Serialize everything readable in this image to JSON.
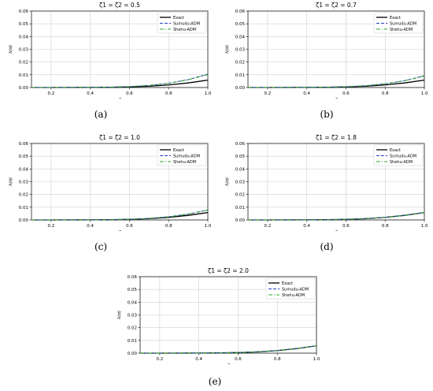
{
  "figure": {
    "panels": [
      {
        "id": "a",
        "caption": "(a)"
      },
      {
        "id": "b",
        "caption": "(b)"
      },
      {
        "id": "c",
        "caption": "(c)"
      },
      {
        "id": "d",
        "caption": "(d)"
      },
      {
        "id": "e",
        "caption": "(e)"
      }
    ],
    "colors": {
      "exact": "#000000",
      "sumudu": "#1f3fbf",
      "shehu": "#2ca02c"
    }
  },
  "chart_data": [
    {
      "type": "line",
      "title": "ζ1 = ζ2 = 0.5",
      "xlabel": "σ",
      "ylabel": "λ(σ)",
      "xlim": [
        0.1,
        1.0
      ],
      "ylim": [
        0,
        0.06
      ],
      "xticks": [
        "0.2",
        "0.4",
        "0.6",
        "0.8",
        "1.0"
      ],
      "yticks": [
        "0.00",
        "0.01",
        "0.02",
        "0.03",
        "0.04",
        "0.05",
        "0.06"
      ],
      "grid": true,
      "legend": "top-right",
      "x": [
        0.1,
        0.2,
        0.3,
        0.4,
        0.5,
        0.6,
        0.7,
        0.8,
        0.9,
        1.0
      ],
      "series": [
        {
          "name": "Exact",
          "style": "solid",
          "values": [
            0,
            1e-05,
            3e-05,
            8e-05,
            0.00018,
            0.00045,
            0.001,
            0.002,
            0.0036,
            0.0058
          ]
        },
        {
          "name": "Sumudu-ADM",
          "style": "dashed",
          "values": [
            0,
            1e-05,
            4e-05,
            0.00012,
            0.0003,
            0.0007,
            0.0016,
            0.0033,
            0.0062,
            0.0105
          ]
        },
        {
          "name": "Shehu-ADM",
          "style": "dashdot",
          "values": [
            0,
            1e-05,
            4e-05,
            0.00012,
            0.0003,
            0.0007,
            0.0016,
            0.0033,
            0.0061,
            0.0102
          ]
        }
      ]
    },
    {
      "type": "line",
      "title": "ζ1 = ζ2 = 0.7",
      "xlabel": "σ",
      "ylabel": "λ(σ)",
      "xlim": [
        0.1,
        1.0
      ],
      "ylim": [
        0,
        0.06
      ],
      "xticks": [
        "0.2",
        "0.4",
        "0.6",
        "0.8",
        "1.0"
      ],
      "yticks": [
        "0.00",
        "0.01",
        "0.02",
        "0.03",
        "0.04",
        "0.05",
        "0.06"
      ],
      "grid": true,
      "legend": "top-right",
      "x": [
        0.1,
        0.2,
        0.3,
        0.4,
        0.5,
        0.6,
        0.7,
        0.8,
        0.9,
        1.0
      ],
      "series": [
        {
          "name": "Exact",
          "style": "solid",
          "values": [
            0,
            1e-05,
            3e-05,
            8e-05,
            0.00018,
            0.00045,
            0.001,
            0.002,
            0.0036,
            0.0058
          ]
        },
        {
          "name": "Sumudu-ADM",
          "style": "dashed",
          "values": [
            0,
            1e-05,
            4e-05,
            0.0001,
            0.00025,
            0.0006,
            0.0014,
            0.0029,
            0.0054,
            0.0092
          ]
        },
        {
          "name": "Shehu-ADM",
          "style": "dashdot",
          "values": [
            0,
            1e-05,
            4e-05,
            0.0001,
            0.00025,
            0.0006,
            0.0014,
            0.0029,
            0.0053,
            0.009
          ]
        }
      ]
    },
    {
      "type": "line",
      "title": "ζ1 = ζ2 = 1.0",
      "xlabel": "σ",
      "ylabel": "λ(σ)",
      "xlim": [
        0.1,
        1.0
      ],
      "ylim": [
        0,
        0.06
      ],
      "xticks": [
        "0.2",
        "0.4",
        "0.6",
        "0.8",
        "1.0"
      ],
      "yticks": [
        "0.00",
        "0.01",
        "0.02",
        "0.03",
        "0.04",
        "0.05",
        "0.06"
      ],
      "grid": true,
      "legend": "top-right",
      "x": [
        0.1,
        0.2,
        0.3,
        0.4,
        0.5,
        0.6,
        0.7,
        0.8,
        0.9,
        1.0
      ],
      "series": [
        {
          "name": "Exact",
          "style": "solid",
          "values": [
            0,
            1e-05,
            3e-05,
            8e-05,
            0.00018,
            0.00045,
            0.001,
            0.002,
            0.0036,
            0.0058
          ]
        },
        {
          "name": "Sumudu-ADM",
          "style": "dashed",
          "values": [
            0,
            1e-05,
            3e-05,
            9e-05,
            0.0002,
            0.0005,
            0.0012,
            0.0025,
            0.0046,
            0.0078
          ]
        },
        {
          "name": "Shehu-ADM",
          "style": "dashdot",
          "values": [
            0,
            1e-05,
            3e-05,
            9e-05,
            0.0002,
            0.0005,
            0.0012,
            0.0025,
            0.0046,
            0.0078
          ]
        }
      ]
    },
    {
      "type": "line",
      "title": "ζ1 = ζ2 = 1.8",
      "xlabel": "σ",
      "ylabel": "λ(σ)",
      "xlim": [
        0.1,
        1.0
      ],
      "ylim": [
        0,
        0.06
      ],
      "xticks": [
        "0.2",
        "0.4",
        "0.6",
        "0.8",
        "1.0"
      ],
      "yticks": [
        "0.00",
        "0.01",
        "0.02",
        "0.03",
        "0.04",
        "0.05",
        "0.06"
      ],
      "grid": true,
      "legend": "top-right",
      "x": [
        0.1,
        0.2,
        0.3,
        0.4,
        0.5,
        0.6,
        0.7,
        0.8,
        0.9,
        1.0
      ],
      "series": [
        {
          "name": "Exact",
          "style": "solid",
          "values": [
            0,
            1e-05,
            3e-05,
            8e-05,
            0.00018,
            0.00045,
            0.001,
            0.002,
            0.0036,
            0.0058
          ]
        },
        {
          "name": "Sumudu-ADM",
          "style": "dashed",
          "values": [
            0,
            1e-05,
            3e-05,
            8e-05,
            0.00018,
            0.00045,
            0.001,
            0.002,
            0.0036,
            0.0059
          ]
        },
        {
          "name": "Shehu-ADM",
          "style": "dashdot",
          "values": [
            0,
            1e-05,
            3e-05,
            8e-05,
            0.00018,
            0.00045,
            0.001,
            0.002,
            0.0036,
            0.0059
          ]
        }
      ]
    },
    {
      "type": "line",
      "title": "ζ1 = ζ2 = 2.0",
      "xlabel": "σ",
      "ylabel": "λ(σ)",
      "xlim": [
        0.1,
        1.0
      ],
      "ylim": [
        0,
        0.06
      ],
      "xticks": [
        "0.2",
        "0.4",
        "0.6",
        "0.8",
        "1.0"
      ],
      "yticks": [
        "0.00",
        "0.01",
        "0.02",
        "0.03",
        "0.04",
        "0.05",
        "0.06"
      ],
      "grid": true,
      "legend": "top-right",
      "x": [
        0.1,
        0.2,
        0.3,
        0.4,
        0.5,
        0.6,
        0.7,
        0.8,
        0.9,
        1.0
      ],
      "series": [
        {
          "name": "Exact",
          "style": "solid",
          "values": [
            0,
            1e-05,
            3e-05,
            8e-05,
            0.00018,
            0.00045,
            0.001,
            0.002,
            0.0036,
            0.0058
          ]
        },
        {
          "name": "Sumudu-ADM",
          "style": "dashed",
          "values": [
            0,
            1e-05,
            3e-05,
            8e-05,
            0.00018,
            0.00045,
            0.001,
            0.002,
            0.0036,
            0.0058
          ]
        },
        {
          "name": "Shehu-ADM",
          "style": "dashdot",
          "values": [
            0,
            1e-05,
            3e-05,
            8e-05,
            0.00018,
            0.00045,
            0.001,
            0.002,
            0.0036,
            0.0058
          ]
        }
      ]
    }
  ]
}
